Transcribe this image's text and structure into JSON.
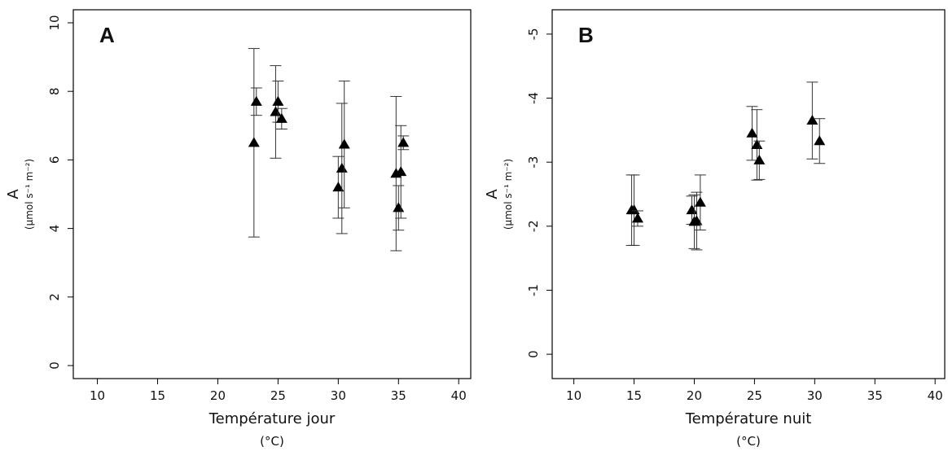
{
  "chart_data": [
    {
      "type": "scatter",
      "panel_label": "A",
      "y_label": "A",
      "y_unit_label": "(µmol s⁻¹ m⁻²)",
      "x_label": "Température jour",
      "x_unit_label": "(°C)",
      "x": [
        23.0,
        23.2,
        24.8,
        25.0,
        25.3,
        30.0,
        30.3,
        30.5,
        34.8,
        35.0,
        35.2,
        35.4
      ],
      "values": [
        6.5,
        7.7,
        7.4,
        7.7,
        7.2,
        5.2,
        5.75,
        6.45,
        5.6,
        4.6,
        5.65,
        6.5
      ],
      "errors": [
        2.75,
        0.4,
        1.35,
        0.6,
        0.3,
        0.9,
        1.9,
        1.85,
        2.25,
        0.65,
        1.35,
        0.2
      ],
      "color": "#000000",
      "xlim": [
        8,
        41
      ],
      "xticks": [
        10,
        15,
        20,
        25,
        30,
        35,
        40
      ],
      "ylim": [
        -0.38,
        10.38
      ],
      "yticks": [
        0,
        2,
        4,
        6,
        8,
        10
      ]
    },
    {
      "type": "scatter",
      "panel_label": "B",
      "y_label": "A",
      "y_unit_label": "(µmol s⁻¹ m⁻²)",
      "x_label": "Température nuit",
      "x_unit_label": "(°C)",
      "x": [
        14.8,
        15.0,
        15.3,
        19.8,
        20.0,
        20.2,
        20.5,
        24.8,
        25.2,
        25.4,
        29.8,
        30.4
      ],
      "values": [
        -2.25,
        -2.25,
        -2.12,
        -2.25,
        -2.07,
        -2.08,
        -2.37,
        -3.45,
        -3.27,
        -3.03,
        -3.65,
        -3.33
      ],
      "errors": [
        0.55,
        0.55,
        0.12,
        0.22,
        0.42,
        0.45,
        0.43,
        0.42,
        0.55,
        0.3,
        0.6,
        0.35
      ],
      "color": "#000000",
      "xlim": [
        8.2,
        40.8
      ],
      "xticks": [
        10,
        15,
        20,
        25,
        30,
        35,
        40
      ],
      "ylim": [
        0.38,
        -5.38
      ],
      "yticks": [
        0,
        -1,
        -2,
        -3,
        -4,
        -5
      ]
    }
  ]
}
